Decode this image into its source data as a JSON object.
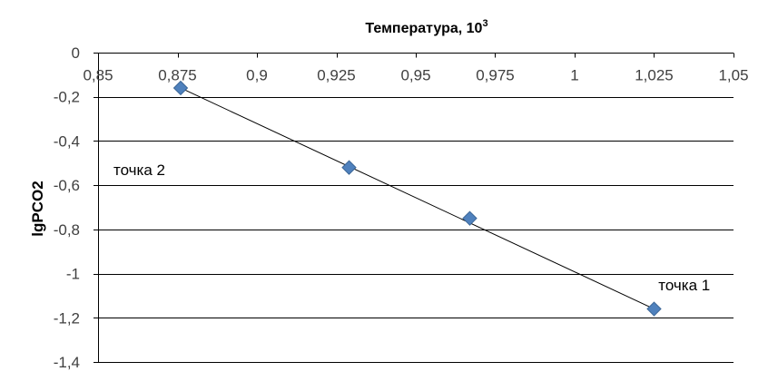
{
  "chart_data": {
    "type": "scatter",
    "title": "Температура, 10",
    "title_superscript": "3",
    "xlabel": "",
    "ylabel": "lgPCO2",
    "xlim": [
      0.85,
      1.05
    ],
    "ylim": [
      -1.4,
      0
    ],
    "x_ticks": [
      "0,85",
      "0,875",
      "0,9",
      "0,925",
      "0,95",
      "0,975",
      "1",
      "1,025",
      "1,05"
    ],
    "x_tick_values": [
      0.85,
      0.875,
      0.9,
      0.925,
      0.95,
      0.975,
      1,
      1.025,
      1.05
    ],
    "y_ticks": [
      "0",
      "-0,2",
      "-0,4",
      "-0,6",
      "-0,8",
      "-1",
      "-1,2",
      "-1,4"
    ],
    "y_tick_values": [
      0,
      -0.2,
      -0.4,
      -0.6,
      -0.8,
      -1,
      -1.2,
      -1.4
    ],
    "grid": "horizontal",
    "x_axis_position": "top",
    "series": [
      {
        "marker": "diamond",
        "color": "#4F81BD",
        "points": [
          {
            "x": 0.876,
            "y": -0.16
          },
          {
            "x": 0.929,
            "y": -0.52
          },
          {
            "x": 0.967,
            "y": -0.75
          },
          {
            "x": 1.025,
            "y": -1.16
          }
        ]
      }
    ],
    "trendline": {
      "color": "#000000",
      "from": {
        "x": 0.876,
        "y": -0.16
      },
      "to": {
        "x": 1.025,
        "y": -1.16
      }
    },
    "annotations": [
      {
        "text": "точка 2",
        "x": 0.863,
        "y": -0.53
      },
      {
        "text": "точка 1",
        "x": 1.0345,
        "y": -1.05
      }
    ]
  }
}
